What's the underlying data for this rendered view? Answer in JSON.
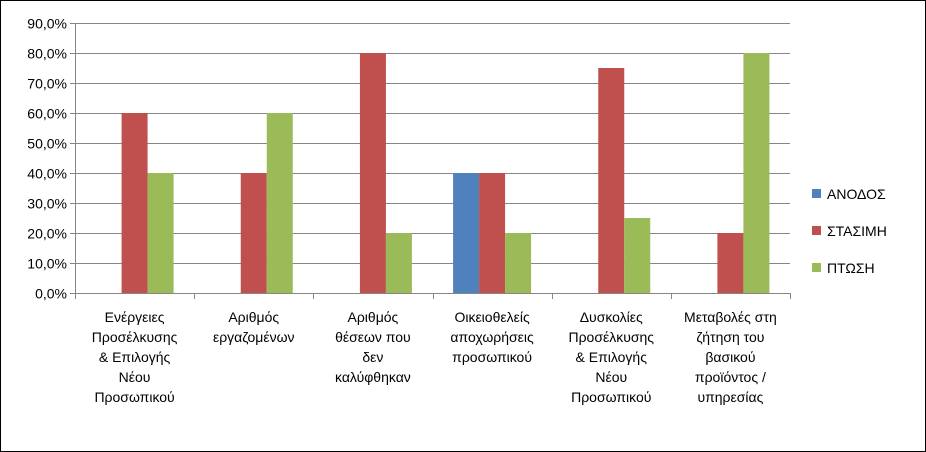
{
  "chart_data": {
    "type": "bar",
    "title": "",
    "xlabel": "",
    "ylabel": "",
    "ylim": [
      0,
      90
    ],
    "y_tick_step": 10,
    "y_tick_format": "percent-1-decimal-comma",
    "grid": true,
    "legend_position": "right",
    "categories": [
      "Ενέργειες\nΠροσέλκυσης\n& Επιλογής\nΝέου\nΠροσωπικού",
      "Αριθμός\nεργαζομένων",
      "Αριθμός\nθέσεων που\nδεν\nκαλύφθηκαν",
      "Οικειοθελείς\nαποχωρήσεις\nπροσωπικού",
      "Δυσκολίες\nΠροσέλκυσης\n& Επιλογής\nΝέου\nΠροσωπικού",
      "Μεταβολές στη\nζήτηση του\nβασικού\nπροϊόντος /\nυπηρεσίας"
    ],
    "series": [
      {
        "name": "ΑΝΟΔΟΣ",
        "color": "#4F81BD",
        "values": [
          0,
          0,
          0,
          40,
          0,
          0
        ]
      },
      {
        "name": "ΣΤΑΣΙΜΗ",
        "color": "#C0504D",
        "values": [
          60,
          40,
          80,
          40,
          75,
          20
        ]
      },
      {
        "name": "ΠΤΩΣΗ",
        "color": "#9BBB59",
        "values": [
          40,
          60,
          20,
          20,
          25,
          80
        ]
      }
    ]
  }
}
